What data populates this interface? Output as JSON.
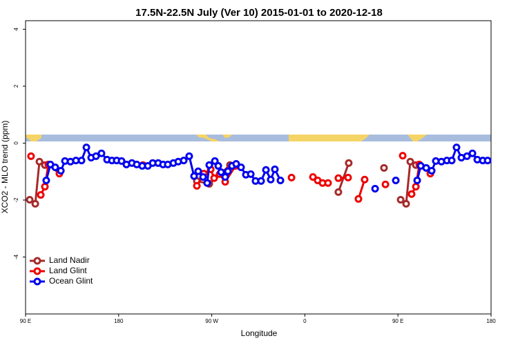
{
  "chart_data": {
    "type": "line",
    "title": "17.5N-22.5N July (Ver 10)   2015-01-01 to 2020-12-18",
    "x_label": "Longitude",
    "y_label": "XCO2 - MLO trend (ppm)",
    "xlim": [
      90,
      540
    ],
    "ylim": [
      -6,
      4.3
    ],
    "xticks": [
      {
        "value": 90,
        "label": "90 E"
      },
      180,
      {
        "value": 270,
        "label": "90 W"
      },
      {
        "value": 360,
        "label": "0"
      },
      {
        "value": 450,
        "label": "90 E"
      },
      {
        "value": 540,
        "label": "180"
      }
    ],
    "yticks": [
      -4,
      -2,
      0,
      2,
      4
    ],
    "legend": "bottom-left",
    "series": [
      {
        "name": "Land Nadir",
        "color": "#a52a2a",
        "x": [
          94.0,
          99.4,
          103.4,
          108.7,
          null,
          255.6,
          267.6,
          287.6,
          null,
          392.4,
          402.4,
          null,
          436.5,
          null,
          452.6,
          457.9,
          461.9,
          467.3
        ],
        "values": [
          -1.99,
          -2.13,
          -0.65,
          -0.77,
          null,
          -1.33,
          -1.43,
          -0.77,
          null,
          -1.72,
          -0.7,
          null,
          -0.87,
          null,
          -1.99,
          -2.13,
          -0.65,
          -0.77
        ]
      },
      {
        "name": "Land Glint",
        "color": "#ee0000",
        "x": [
          95.3,
          null,
          104.7,
          108.7,
          112.0,
          122.7,
          null,
          203.5,
          null,
          255.6,
          262.3,
          269.0,
          272.3,
          277.6,
          283.0,
          293.0,
          null,
          347.1,
          null,
          367.8,
          372.4,
          377.1,
          382.4,
          null,
          392.4,
          401.8,
          null,
          411.8,
          417.8,
          null,
          437.9,
          null,
          454.6,
          null,
          463.2,
          467.3,
          470.6,
          481.3
        ],
        "values": [
          -0.46,
          null,
          -1.82,
          -1.53,
          -0.75,
          -1.07,
          null,
          -0.77,
          null,
          -1.5,
          -1.07,
          -0.92,
          -1.23,
          -1.09,
          -1.36,
          -0.8,
          null,
          -1.21,
          null,
          -1.19,
          -1.31,
          -1.4,
          -1.4,
          null,
          -1.23,
          -1.21,
          null,
          -1.96,
          -1.28,
          null,
          -1.45,
          null,
          -0.44,
          null,
          -1.79,
          -1.53,
          -0.75,
          -1.07
        ]
      },
      {
        "name": "Ocean Glint",
        "color": "#0000ee",
        "x": [
          110.0,
          114.0,
          118.7,
          124.1,
          128.1,
          133.4,
          138.7,
          144.1,
          148.8,
          153.4,
          158.1,
          163.4,
          168.8,
          173.5,
          178.1,
          182.8,
          187.5,
          192.8,
          197.5,
          202.8,
          208.2,
          212.9,
          218.2,
          222.9,
          227.5,
          232.9,
          237.6,
          242.9,
          248.2,
          252.9,
          256.9,
          261.6,
          265.6,
          267.6,
          273.0,
          276.3,
          279.0,
          283.0,
          285.6,
          289.6,
          293.6,
          298.3,
          303.0,
          307.7,
          312.3,
          317.7,
          322.4,
          327.0,
          331.0,
          336.4,
          null,
          427.9,
          null,
          447.9,
          null,
          468.6,
          472.0,
          477.3,
          482.6,
          486.6,
          492.0,
          497.3,
          502.0,
          506.6,
          511.3,
          516.7,
          522.0,
          526.7,
          532.0,
          536.7
        ],
        "values": [
          -1.31,
          -0.75,
          -0.85,
          -0.97,
          -0.63,
          -0.65,
          -0.61,
          -0.61,
          -0.15,
          -0.51,
          -0.46,
          -0.36,
          -0.58,
          -0.61,
          -0.61,
          -0.63,
          -0.75,
          -0.7,
          -0.75,
          -0.8,
          -0.8,
          -0.7,
          -0.7,
          -0.75,
          -0.75,
          -0.7,
          -0.65,
          -0.61,
          -0.46,
          -1.16,
          -0.99,
          -1.19,
          -1.4,
          -0.77,
          -0.63,
          -0.8,
          -1.02,
          -1.19,
          -0.99,
          -0.8,
          -0.73,
          -0.85,
          -1.11,
          -1.09,
          -1.33,
          -1.33,
          -0.94,
          -1.28,
          -0.92,
          -1.31,
          null,
          -1.6,
          null,
          -1.31,
          null,
          -1.31,
          -0.8,
          -0.87,
          -0.97,
          -0.63,
          -0.65,
          -0.61,
          -0.61,
          -0.15,
          -0.51,
          -0.46,
          -0.36,
          -0.58,
          -0.61,
          -0.61
        ]
      }
    ]
  }
}
